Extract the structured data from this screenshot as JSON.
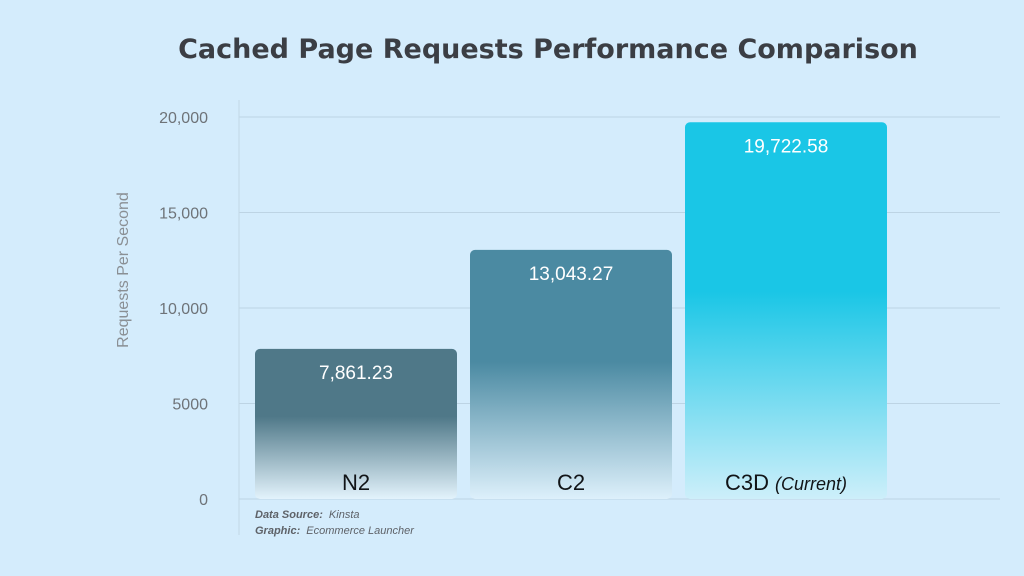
{
  "chart_data": {
    "type": "bar",
    "title": "Cached Page Requests Performance Comparison",
    "xlabel": "",
    "ylabel": "Requests Per Second",
    "ylim": [
      0,
      20000
    ],
    "yticks": [
      0,
      5000,
      10000,
      15000,
      20000
    ],
    "ytick_labels": [
      "0",
      "5000",
      "10,000",
      "15,000",
      "20,000"
    ],
    "grid": true,
    "categories": [
      "N2",
      "C2",
      "C3D"
    ],
    "category_notes": [
      "",
      "",
      "(Current)"
    ],
    "values": [
      7861.23,
      13043.27,
      19722.58
    ],
    "value_labels": [
      "7,861.23",
      "13,043.27",
      "19,722.58"
    ],
    "bar_colors": [
      {
        "top": "#4f7888",
        "bottom": "#e3f3fc"
      },
      {
        "top": "#4b8aa2",
        "bottom": "#ddf0fb"
      },
      {
        "top": "#1ac6e6",
        "bottom": "#cdeffa"
      }
    ]
  },
  "footer": {
    "source_label": "Data Source:",
    "source_value": "Kinsta",
    "graphic_label": "Graphic:",
    "graphic_value": "Ecommerce Launcher"
  },
  "colors": {
    "background": "#d4ecfc",
    "grid": "#bdd4e4"
  }
}
